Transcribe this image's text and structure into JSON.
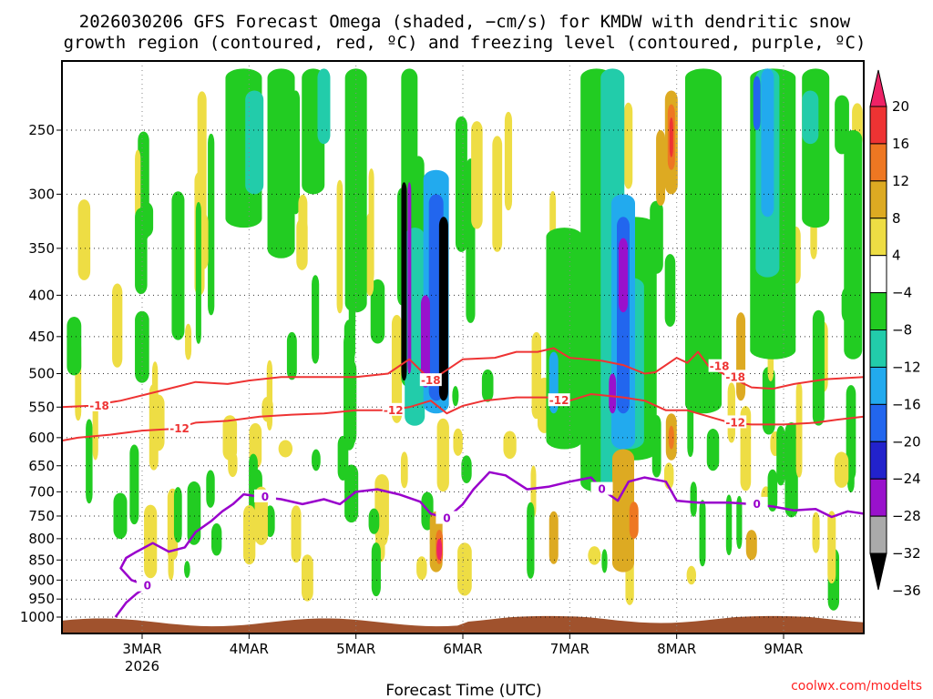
{
  "chart_data": {
    "type": "heatmap",
    "title_line1": "2026030206 GFS Forecast Omega (shaded, −cm/s) for KMDW with dendritic snow",
    "title_line2": "growth region (contoured, red, ºC) and freezing level (contoured, purple, ºC)",
    "xlabel": "Forecast Time (UTC)",
    "ylabel": "",
    "credit": "coolwx.com/modelts",
    "colors": {
      "red_contour": "#ee3333",
      "purple_contour": "#9900cc",
      "ground": "#a0522d",
      "credit": "#ff2222",
      "grid": "#000000"
    },
    "x_range_days": [
      2.25,
      9.75
    ],
    "x_ticks": [
      {
        "day": 3,
        "label": "3MAR",
        "sublabel": "2026"
      },
      {
        "day": 4,
        "label": "4MAR",
        "sublabel": ""
      },
      {
        "day": 5,
        "label": "5MAR",
        "sublabel": ""
      },
      {
        "day": 6,
        "label": "6MAR",
        "sublabel": ""
      },
      {
        "day": 7,
        "label": "7MAR",
        "sublabel": ""
      },
      {
        "day": 8,
        "label": "8MAR",
        "sublabel": ""
      },
      {
        "day": 9,
        "label": "9MAR",
        "sublabel": ""
      }
    ],
    "y_range_hpa": [
      1025,
      200
    ],
    "y_ticks": [
      250,
      300,
      350,
      400,
      450,
      500,
      550,
      600,
      650,
      700,
      750,
      800,
      850,
      900,
      950,
      1000
    ],
    "colorbar": {
      "levels": [
        20,
        16,
        12,
        8,
        4,
        -4,
        -8,
        -12,
        -16,
        -20,
        -24,
        -28,
        -32,
        -36
      ],
      "labels": [
        "20",
        "16",
        "12",
        "8",
        "4",
        "−4",
        "−8",
        "−12",
        "−16",
        "−20",
        "−24",
        "−28",
        "−32",
        "−36"
      ],
      "colors": [
        "#ee2266",
        "#ee3333",
        "#ee7722",
        "#ddaa22",
        "#eedd44",
        "#ffffff",
        "#22cc22",
        "#22ccaa",
        "#22aaee",
        "#2266ee",
        "#2222cc",
        "#9911cc",
        "#aaaaaa",
        "#000000"
      ]
    },
    "red_contours": [
      {
        "label": "-18",
        "label_at": [
          2.6,
          8.55,
          5.7,
          8.4
        ],
        "points": [
          [
            2.25,
            550
          ],
          [
            2.5,
            548
          ],
          [
            2.8,
            540
          ],
          [
            3.1,
            528
          ],
          [
            3.3,
            520
          ],
          [
            3.5,
            512
          ],
          [
            3.8,
            515
          ],
          [
            4.0,
            510
          ],
          [
            4.3,
            505
          ],
          [
            4.6,
            505
          ],
          [
            5.0,
            505
          ],
          [
            5.3,
            500
          ],
          [
            5.5,
            480
          ],
          [
            5.7,
            510
          ],
          [
            5.85,
            495
          ],
          [
            6.0,
            480
          ],
          [
            6.3,
            478
          ],
          [
            6.5,
            470
          ],
          [
            6.7,
            470
          ],
          [
            6.85,
            465
          ],
          [
            7.0,
            478
          ],
          [
            7.3,
            482
          ],
          [
            7.5,
            488
          ],
          [
            7.7,
            500
          ],
          [
            7.8,
            498
          ],
          [
            8.0,
            478
          ],
          [
            8.1,
            485
          ],
          [
            8.2,
            470
          ],
          [
            8.3,
            490
          ],
          [
            8.5,
            505
          ],
          [
            8.7,
            520
          ],
          [
            8.9,
            522
          ],
          [
            9.1,
            515
          ],
          [
            9.4,
            508
          ],
          [
            9.75,
            505
          ]
        ]
      },
      {
        "label": "-12",
        "label_at": [
          3.35,
          5.35,
          6.9,
          8.55
        ],
        "points": [
          [
            2.25,
            605
          ],
          [
            2.4,
            600
          ],
          [
            2.7,
            595
          ],
          [
            3.0,
            588
          ],
          [
            3.3,
            585
          ],
          [
            3.5,
            575
          ],
          [
            3.8,
            572
          ],
          [
            4.1,
            565
          ],
          [
            4.4,
            562
          ],
          [
            4.7,
            560
          ],
          [
            5.0,
            555
          ],
          [
            5.3,
            555
          ],
          [
            5.5,
            550
          ],
          [
            5.7,
            540
          ],
          [
            5.85,
            560
          ],
          [
            6.0,
            548
          ],
          [
            6.2,
            540
          ],
          [
            6.5,
            535
          ],
          [
            6.8,
            535
          ],
          [
            7.0,
            540
          ],
          [
            7.2,
            530
          ],
          [
            7.5,
            535
          ],
          [
            7.7,
            540
          ],
          [
            7.9,
            555
          ],
          [
            8.1,
            555
          ],
          [
            8.3,
            565
          ],
          [
            8.5,
            575
          ],
          [
            8.7,
            578
          ],
          [
            9.0,
            578
          ],
          [
            9.3,
            575
          ],
          [
            9.5,
            570
          ],
          [
            9.75,
            565
          ]
        ]
      }
    ],
    "purple_contours": [
      {
        "label": "0",
        "label_at": [
          3.05,
          4.15,
          5.85,
          7.3,
          8.75
        ],
        "points": [
          [
            2.75,
            1000
          ],
          [
            2.85,
            960
          ],
          [
            2.95,
            935
          ],
          [
            3.05,
            915
          ],
          [
            2.9,
            900
          ],
          [
            2.8,
            870
          ],
          [
            2.85,
            845
          ],
          [
            2.95,
            830
          ],
          [
            3.1,
            810
          ],
          [
            3.25,
            830
          ],
          [
            3.4,
            820
          ],
          [
            3.5,
            785
          ],
          [
            3.65,
            760
          ],
          [
            3.75,
            740
          ],
          [
            3.85,
            725
          ],
          [
            3.95,
            705
          ],
          [
            4.1,
            710
          ],
          [
            4.3,
            715
          ],
          [
            4.5,
            725
          ],
          [
            4.7,
            715
          ],
          [
            4.85,
            725
          ],
          [
            5.0,
            700
          ],
          [
            5.2,
            695
          ],
          [
            5.4,
            705
          ],
          [
            5.6,
            720
          ],
          [
            5.7,
            745
          ],
          [
            5.85,
            755
          ],
          [
            6.0,
            725
          ],
          [
            6.1,
            695
          ],
          [
            6.25,
            662
          ],
          [
            6.4,
            668
          ],
          [
            6.6,
            695
          ],
          [
            6.8,
            690
          ],
          [
            7.0,
            680
          ],
          [
            7.2,
            672
          ],
          [
            7.3,
            695
          ],
          [
            7.45,
            718
          ],
          [
            7.55,
            680
          ],
          [
            7.7,
            672
          ],
          [
            7.9,
            680
          ],
          [
            8.0,
            718
          ],
          [
            8.2,
            722
          ],
          [
            8.5,
            722
          ],
          [
            8.7,
            725
          ],
          [
            8.9,
            730
          ],
          [
            9.1,
            738
          ],
          [
            9.3,
            735
          ],
          [
            9.45,
            752
          ],
          [
            9.6,
            740
          ],
          [
            9.75,
            745
          ]
        ]
      }
    ]
  }
}
